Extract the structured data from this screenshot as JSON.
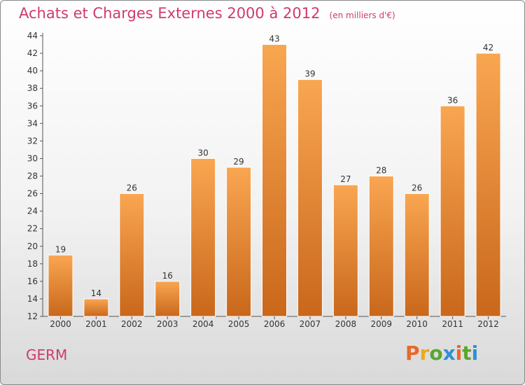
{
  "header": {
    "title": "Achats et Charges Externes 2000 à 2012",
    "unit": "(en milliers d'€)"
  },
  "footer": {
    "commune": "GERM",
    "logo_text": "Proxiti",
    "logo_colors": [
      "#e8672a",
      "#f0a81e",
      "#5aa62e",
      "#2f8fd6",
      "#e8672a",
      "#5aa62e",
      "#2f8fd6"
    ]
  },
  "colors": {
    "bar_top": "#f9a651",
    "bar_bottom": "#c9671b",
    "title": "#d03a6a"
  },
  "chart_data": {
    "type": "bar",
    "title": "Achats et Charges Externes 2000 à 2012",
    "subtitle": "(en milliers d'€)",
    "categories": [
      "2000",
      "2001",
      "2002",
      "2003",
      "2004",
      "2005",
      "2006",
      "2007",
      "2008",
      "2009",
      "2010",
      "2011",
      "2012"
    ],
    "values": [
      19,
      14,
      26,
      16,
      30,
      29,
      43,
      39,
      27,
      28,
      26,
      36,
      42
    ],
    "ylim": [
      12,
      44
    ],
    "yticks": [
      12,
      14,
      16,
      18,
      20,
      22,
      24,
      26,
      28,
      30,
      32,
      34,
      36,
      38,
      40,
      42,
      44
    ],
    "grid": false,
    "data_labels": true
  }
}
